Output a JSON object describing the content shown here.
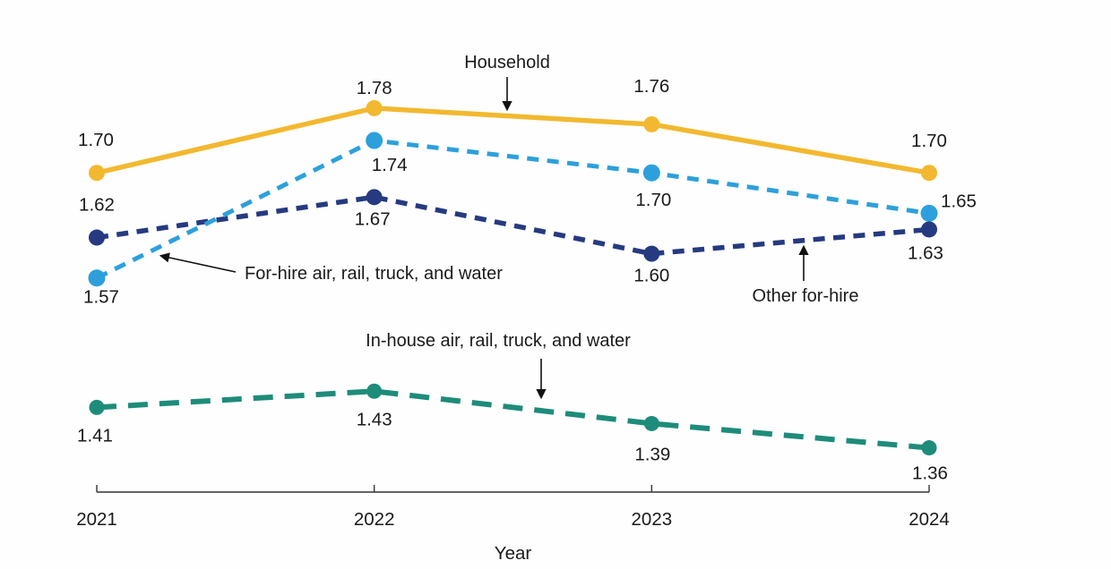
{
  "chart_data": {
    "type": "line",
    "title": "",
    "xlabel": "Year",
    "ylabel": "",
    "x": [
      2021,
      2022,
      2023,
      2024
    ],
    "y_axis_visible": false,
    "grid": false,
    "legend": "none (series labeled by arrow annotations)",
    "value_labels_decimals": 2,
    "series": [
      {
        "name": "Household",
        "color": "#F2B82F",
        "line_style": "solid",
        "values": [
          1.7,
          1.78,
          1.76,
          1.7
        ]
      },
      {
        "name": "For-hire air, rail, truck, and water",
        "color": "#2DA0DB",
        "line_style": "dashed",
        "values": [
          1.57,
          1.74,
          1.7,
          1.65
        ]
      },
      {
        "name": "Other for-hire",
        "color": "#253A80",
        "line_style": "dashed",
        "values": [
          1.62,
          1.67,
          1.6,
          1.63
        ]
      },
      {
        "name": "In-house air, rail, truck, and water",
        "color": "#1E8C7A",
        "line_style": "long-dashed",
        "values": [
          1.41,
          1.43,
          1.39,
          1.36
        ]
      }
    ],
    "annotations": [
      {
        "text": "Household",
        "points_to": "Household"
      },
      {
        "text": "For-hire air, rail, truck, and water",
        "points_to": "For-hire air, rail, truck, and water"
      },
      {
        "text": "Other for-hire",
        "points_to": "Other for-hire"
      },
      {
        "text": "In-house air, rail, truck, and water",
        "points_to": "In-house air, rail, truck, and water"
      }
    ],
    "axis_color": "#333333",
    "text_color": "#1a1a1a"
  }
}
